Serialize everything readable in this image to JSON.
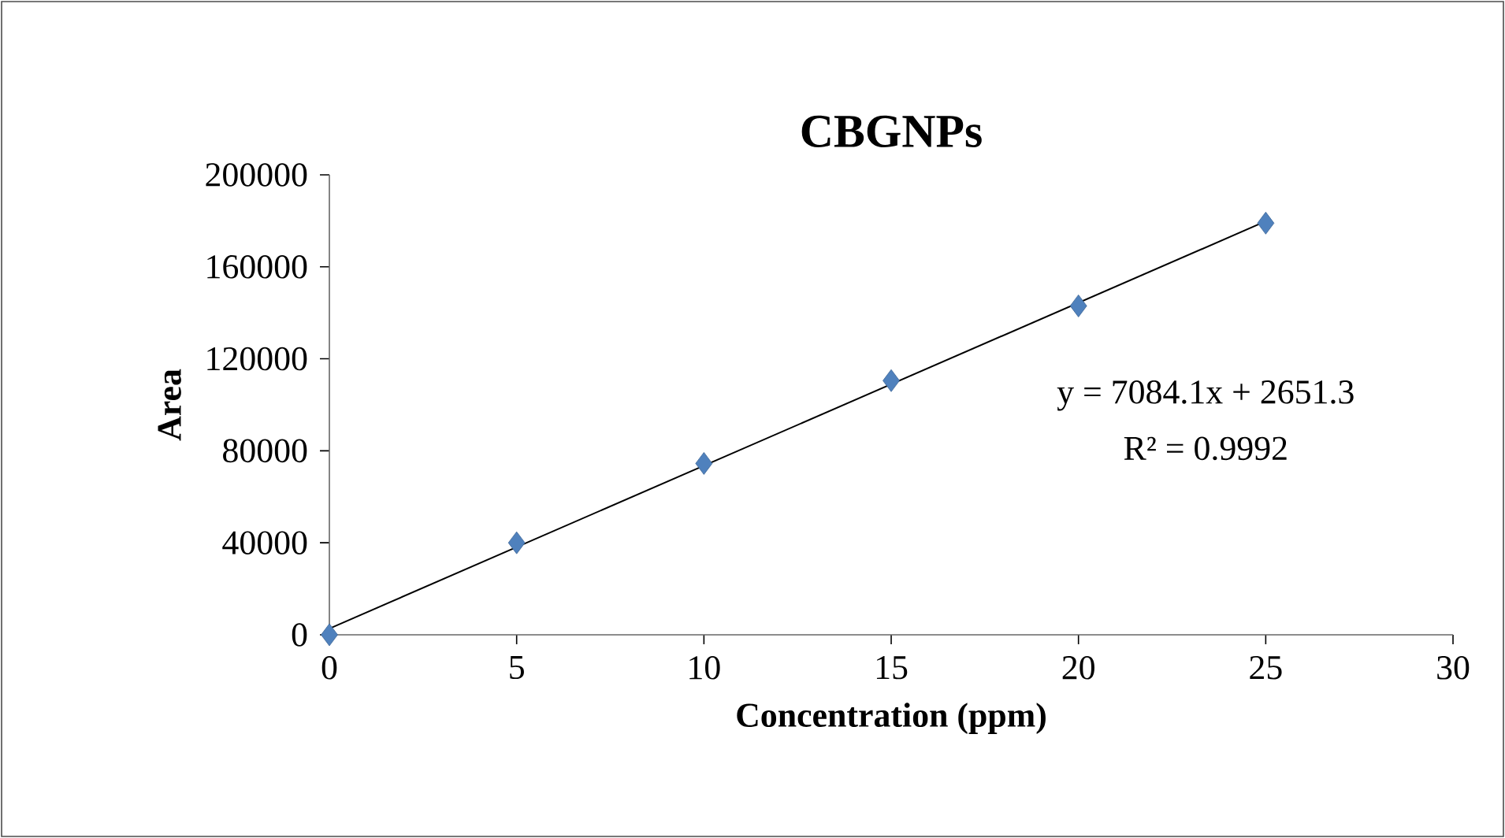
{
  "chart_data": {
    "type": "scatter",
    "title": "CBGNPs",
    "xlabel": "Concentration (ppm)",
    "ylabel": "Area",
    "annotations": [
      "y = 7084.1x + 2651.3",
      "R² = 0.9992"
    ],
    "series": [
      {
        "color": "#4f81bd",
        "marker": "diamond",
        "x": [
          0,
          5,
          10,
          15,
          20,
          25
        ],
        "values": [
          0,
          40000,
          74500,
          110500,
          143000,
          179000
        ]
      },
      {
        "type": "line",
        "color": "#000000",
        "marker": "none",
        "line_style": "solid",
        "x": [
          0,
          25
        ],
        "values": [
          2700,
          179800
        ]
      }
    ],
    "xlim": [
      0,
      30
    ],
    "ylim": [
      0,
      200000
    ],
    "xticks": [
      0,
      5,
      10,
      15,
      20,
      25,
      30
    ],
    "yticks": [
      0,
      40000,
      80000,
      120000,
      160000,
      200000
    ],
    "grid": false
  }
}
